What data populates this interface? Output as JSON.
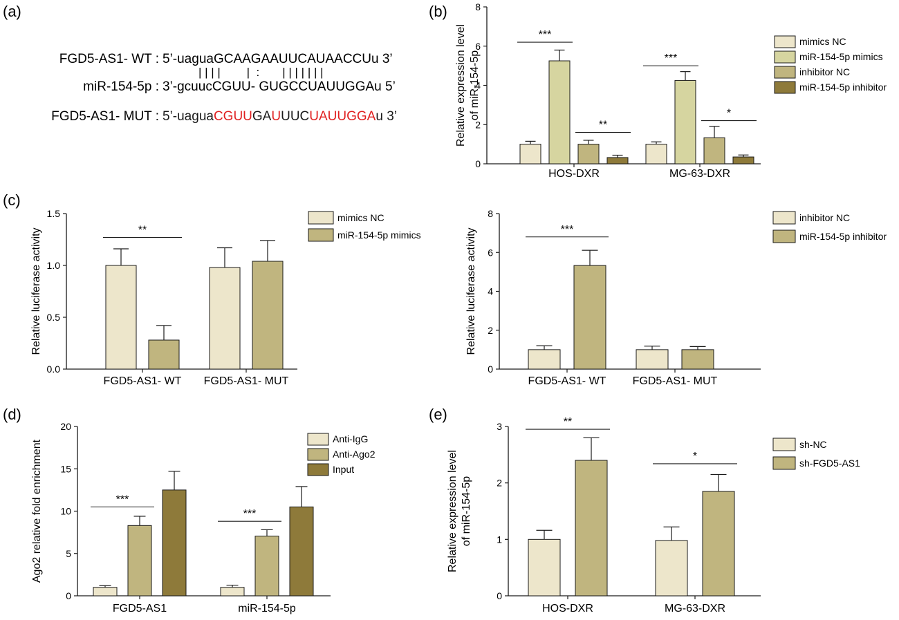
{
  "colors": {
    "c1": "#EDE6CB",
    "c2": "#D6D5A0",
    "c3": "#C0B57F",
    "c4": "#8E7A3A",
    "mut": "#E01F1F",
    "ink": "#1a1a1a"
  },
  "panel_a": {
    "label": "(a)",
    "wt_label": "FGD5-AS1- WT :",
    "wt_seq": "5’-uaguaGCAAGAAUUCAUAACCUu 3’",
    "pairing": "| | | |        |  :       | | | | | | |",
    "mir_label": "miR-154-5p :",
    "mir_seq": "3’-gcuucCGUU- GUGCCUAUUGGAu 5’",
    "mut_label": "FGD5-AS1- MUT :",
    "mut_segments": [
      {
        "text": "5’-uagua",
        "red": false
      },
      {
        "text": "CGUU",
        "red": true
      },
      {
        "text": "GA",
        "red": false
      },
      {
        "text": "U",
        "red": true
      },
      {
        "text": "UUC",
        "red": false
      },
      {
        "text": "UAUUGGA",
        "red": true
      },
      {
        "text": "u 3’",
        "red": false
      }
    ]
  },
  "chart_data": [
    {
      "panel": "(b)",
      "type": "bar",
      "categories": [
        "HOS-DXR",
        "MG-63-DXR"
      ],
      "ylabel": [
        "Relative expression level",
        "of  miR-154-5p"
      ],
      "ylim": [
        0,
        8
      ],
      "yticks": [
        "0",
        "2",
        "4",
        "6",
        "8"
      ],
      "legend_position": "top-right",
      "series": [
        {
          "name": "mimics NC",
          "values": [
            1.0,
            1.0
          ],
          "errors": [
            0.15,
            0.12
          ],
          "color": "c1"
        },
        {
          "name": "miR-154-5p mimics",
          "values": [
            5.25,
            4.25
          ],
          "errors": [
            0.55,
            0.45
          ],
          "color": "c2"
        },
        {
          "name": "inhibitor NC",
          "values": [
            1.0,
            1.33
          ],
          "errors": [
            0.2,
            0.58
          ],
          "color": "c3"
        },
        {
          "name": "miR-154-5p inhibitor",
          "values": [
            0.32,
            0.35
          ],
          "errors": [
            0.12,
            0.1
          ],
          "color": "c4"
        }
      ],
      "significance": [
        {
          "cat": 0,
          "from": 0,
          "to": 1,
          "y": 6.2,
          "label": "***"
        },
        {
          "cat": 0,
          "from": 2,
          "to": 3,
          "y": 1.6,
          "label": "**"
        },
        {
          "cat": 1,
          "from": 0,
          "to": 1,
          "y": 5.0,
          "label": "***"
        },
        {
          "cat": 1,
          "from": 2,
          "to": 3,
          "y": 2.2,
          "label": "*"
        }
      ]
    },
    {
      "panel": "(c)",
      "type": "bar",
      "categories": [
        "FGD5-AS1- WT",
        "FGD5-AS1- MUT"
      ],
      "ylabel": [
        "Relative luciferase activity"
      ],
      "ylim": [
        0,
        1.5
      ],
      "yticks": [
        "0.0",
        "0.5",
        "1.0",
        "1.5"
      ],
      "legend_position": "top-right",
      "series": [
        {
          "name": "mimics NC",
          "values": [
            1.0,
            0.98
          ],
          "errors": [
            0.16,
            0.19
          ],
          "color": "c1"
        },
        {
          "name": "miR-154-5p mimics",
          "values": [
            0.28,
            1.04
          ],
          "errors": [
            0.14,
            0.2
          ],
          "color": "c3"
        }
      ],
      "significance": [
        {
          "cat": 0,
          "from": 0,
          "to": 1,
          "y": 1.27,
          "label": "**"
        }
      ]
    },
    {
      "panel": "",
      "type": "bar",
      "categories": [
        "FGD5-AS1- WT",
        "FGD5-AS1- MUT"
      ],
      "ylabel": [
        "Relative luciferase activity"
      ],
      "ylim": [
        0,
        8
      ],
      "yticks": [
        "0",
        "2",
        "4",
        "6",
        "8"
      ],
      "legend_position": "top-right",
      "series": [
        {
          "name": "inhibitor NC",
          "values": [
            1.0,
            1.0
          ],
          "errors": [
            0.2,
            0.18
          ],
          "color": "c1"
        },
        {
          "name": "miR-154-5p inhibitor",
          "values": [
            5.33,
            1.0
          ],
          "errors": [
            0.78,
            0.16
          ],
          "color": "c3"
        }
      ],
      "significance": [
        {
          "cat": 0,
          "from": 0,
          "to": 1,
          "y": 6.8,
          "label": "***"
        }
      ]
    },
    {
      "panel": "(d)",
      "type": "bar",
      "categories": [
        "FGD5-AS1",
        "miR-154-5p"
      ],
      "ylabel": [
        "Ago2 relative fold enrichment"
      ],
      "ylim": [
        0,
        20
      ],
      "yticks": [
        "0",
        "5",
        "10",
        "15",
        "20"
      ],
      "legend_position": "top-right",
      "series": [
        {
          "name": "Anti-IgG",
          "values": [
            1.0,
            1.0
          ],
          "errors": [
            0.2,
            0.25
          ],
          "color": "c1"
        },
        {
          "name": "Anti-Ago2",
          "values": [
            8.3,
            7.05
          ],
          "errors": [
            1.1,
            0.75
          ],
          "color": "c3"
        },
        {
          "name": "Input",
          "values": [
            12.5,
            10.5
          ],
          "errors": [
            2.2,
            2.4
          ],
          "color": "c4"
        }
      ],
      "significance": [
        {
          "cat": 0,
          "from": 0,
          "to": 1,
          "y": 10.5,
          "label": "***"
        },
        {
          "cat": 1,
          "from": 0,
          "to": 1,
          "y": 8.8,
          "label": "***"
        }
      ]
    },
    {
      "panel": "(e)",
      "type": "bar",
      "categories": [
        "HOS-DXR",
        "MG-63-DXR"
      ],
      "ylabel": [
        "Relative expression level",
        "of  miR-154-5p"
      ],
      "ylim": [
        0,
        3
      ],
      "yticks": [
        "0",
        "1",
        "2",
        "3"
      ],
      "legend_position": "top-right",
      "series": [
        {
          "name": "sh-NC",
          "values": [
            1.0,
            0.98
          ],
          "errors": [
            0.16,
            0.24
          ],
          "color": "c1"
        },
        {
          "name": "sh-FGD5-AS1",
          "values": [
            2.4,
            1.85
          ],
          "errors": [
            0.4,
            0.3
          ],
          "color": "c3"
        }
      ],
      "significance": [
        {
          "cat": 0,
          "from": 0,
          "to": 1,
          "y": 2.95,
          "label": "**"
        },
        {
          "cat": 1,
          "from": 0,
          "to": 1,
          "y": 2.34,
          "label": "*"
        }
      ]
    }
  ]
}
